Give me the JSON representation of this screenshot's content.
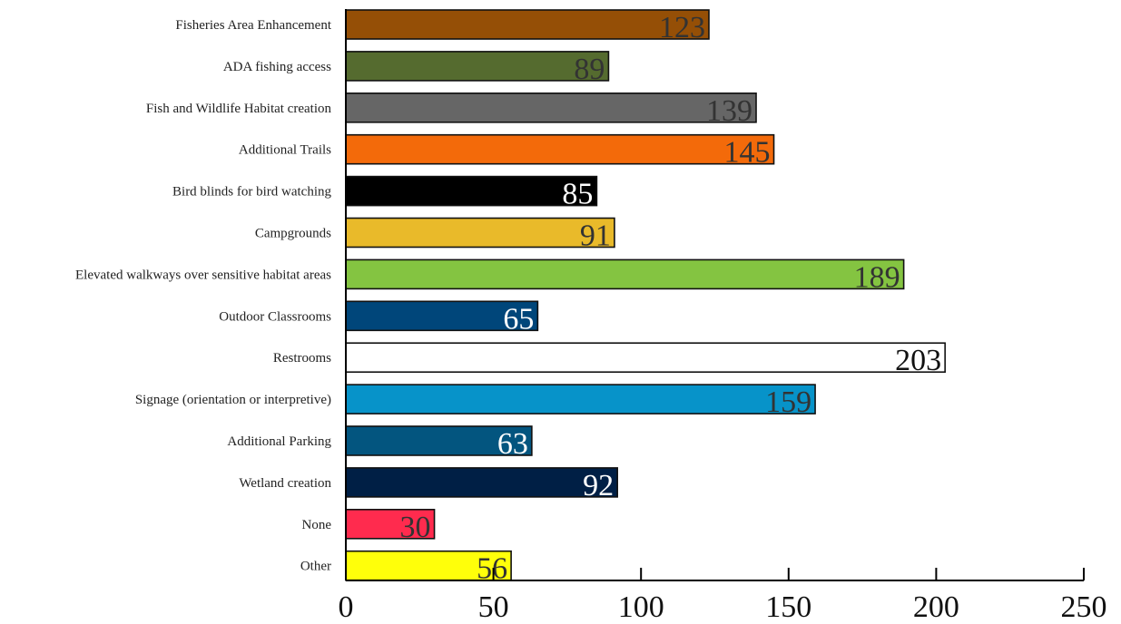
{
  "chart_data": {
    "type": "bar",
    "orientation": "horizontal",
    "title": "",
    "xlabel": "",
    "ylabel": "",
    "xlim": [
      0,
      250
    ],
    "x_ticks": [
      0,
      50,
      100,
      150,
      200,
      250
    ],
    "grid": false,
    "legend": "none",
    "categories": [
      "Fisheries Area Enhancement",
      "ADA fishing access",
      "Fish and Wildlife Habitat creation",
      "Additional Trails",
      "Bird blinds for bird watching",
      "Campgrounds",
      "Elevated walkways over sensitive habitat areas",
      "Outdoor Classrooms",
      "Restrooms",
      "Signage (orientation or interpretive)",
      "Additional Parking",
      "Wetland creation",
      "None",
      "Other"
    ],
    "values": [
      123,
      89,
      139,
      145,
      85,
      91,
      189,
      65,
      203,
      159,
      63,
      92,
      30,
      56
    ],
    "bar_colors": [
      "#954F06",
      "#556B2F",
      "#666666",
      "#F36A0A",
      "#000000",
      "#E9BA2A",
      "#84C441",
      "#00467A",
      "#FFFFFF",
      "#0793C9",
      "#03557F",
      "#001F45",
      "#FF2B4E",
      "#FFFF0A"
    ],
    "label_colors": [
      "#333333",
      "#333333",
      "#333333",
      "#333333",
      "#FFFFFF",
      "#333333",
      "#333333",
      "#FFFFFF",
      "#111111",
      "#333333",
      "#FFFFFF",
      "#FFFFFF",
      "#333333",
      "#333333"
    ]
  }
}
